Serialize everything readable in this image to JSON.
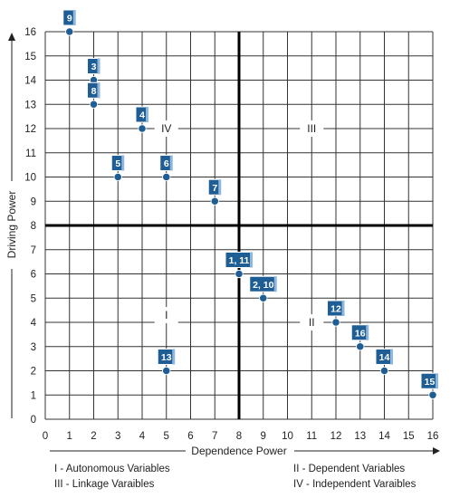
{
  "chart_data": {
    "type": "scatter",
    "xlabel": "Dependence Power",
    "ylabel": "Driving Power",
    "xlim": [
      0,
      16
    ],
    "ylim": [
      0,
      16
    ],
    "grid": true,
    "x_ticks": [
      "0",
      "1",
      "2",
      "3",
      "4",
      "5",
      "6",
      "7",
      "8",
      "9",
      "10",
      "11",
      "12",
      "13",
      "14",
      "15",
      "16"
    ],
    "y_ticks": [
      "0",
      "1",
      "2",
      "3",
      "4",
      "5",
      "6",
      "7",
      "8",
      "9",
      "10",
      "11",
      "12",
      "13",
      "14",
      "15",
      "16"
    ],
    "divider": {
      "x": 8,
      "y": 8
    },
    "quadrant_labels": [
      {
        "text": "I",
        "x": 5,
        "y": 4.3
      },
      {
        "text": "II",
        "x": 11,
        "y": 4
      },
      {
        "text": "III",
        "x": 11,
        "y": 12
      },
      {
        "text": "IV",
        "x": 5,
        "y": 12
      }
    ],
    "points": [
      {
        "label": "9",
        "x": 1,
        "y": 16
      },
      {
        "label": "3",
        "x": 2,
        "y": 14
      },
      {
        "label": "8",
        "x": 2,
        "y": 13
      },
      {
        "label": "4",
        "x": 4,
        "y": 12
      },
      {
        "label": "5",
        "x": 3,
        "y": 10
      },
      {
        "label": "6",
        "x": 5,
        "y": 10
      },
      {
        "label": "7",
        "x": 7,
        "y": 9
      },
      {
        "label": "1, 11",
        "x": 8,
        "y": 6
      },
      {
        "label": "2, 10",
        "x": 9,
        "y": 5
      },
      {
        "label": "12",
        "x": 12,
        "y": 4
      },
      {
        "label": "16",
        "x": 13,
        "y": 3
      },
      {
        "label": "14",
        "x": 14,
        "y": 2
      },
      {
        "label": "13",
        "x": 5,
        "y": 2
      },
      {
        "label": "15",
        "x": 16,
        "y": 1
      }
    ],
    "colors": {
      "point": "#1f5e95",
      "label_bg": "#1f5e95",
      "grid": "#333333",
      "divider": "#000000"
    }
  },
  "legend": {
    "i": "I - Autonomous Variables",
    "ii": "II - Dependent Variables",
    "iii": "III - Linkage Varaibles",
    "iv": "IV - Independent Varaibles"
  }
}
